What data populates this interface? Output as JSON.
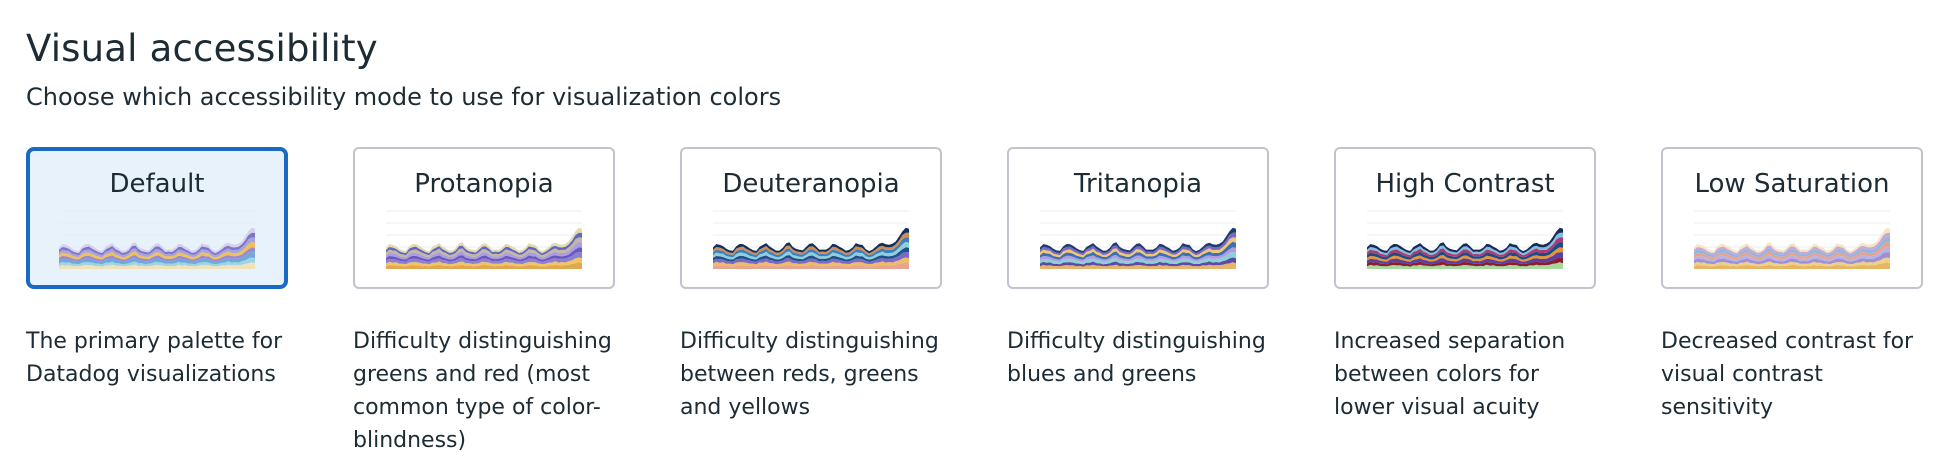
{
  "header": {
    "title": "Visual accessibility",
    "subtitle": "Choose which accessibility mode to use for visualization colors"
  },
  "selected": "default",
  "options": [
    {
      "id": "default",
      "label": "Default",
      "description": "The primary palette for Datadog visualizations",
      "palette": [
        "#f1e3b7",
        "#9fd4e6",
        "#6fa9d9",
        "#9b8ad0",
        "#f0c05a",
        "#a7a3dc",
        "#7e74c9",
        "#d6d0ef"
      ]
    },
    {
      "id": "protanopia",
      "label": "Protanopia",
      "description": "Difficulty distinguishing greens and red (most common type of color-blindness)",
      "palette": [
        "#e2a84f",
        "#f2c464",
        "#8d7fd1",
        "#6a58c0",
        "#a89ee0",
        "#c9b5a0",
        "#5c6bc0",
        "#e7d9ae"
      ]
    },
    {
      "id": "deuteranopia",
      "label": "Deuteranopia",
      "description": "Difficulty distinguishing between reds, greens and yellows",
      "palette": [
        "#e8a690",
        "#f0bc63",
        "#7c6ac9",
        "#1f4f8c",
        "#8ecfd8",
        "#3a7fc0",
        "#d58a4f",
        "#0f2f5c"
      ]
    },
    {
      "id": "tritanopia",
      "label": "Tritanopia",
      "description": "Difficulty distinguishing blues and greens",
      "palette": [
        "#e7b46a",
        "#5c4ba6",
        "#8ad0d4",
        "#b39be0",
        "#3b6fb6",
        "#f1c76f",
        "#7a68c4",
        "#1e3c73"
      ]
    },
    {
      "id": "high-contrast",
      "label": "High Contrast",
      "description": "Increased separation between colors for lower visual acuity",
      "palette": [
        "#a6d99c",
        "#8a1e2f",
        "#5b3fa8",
        "#e7952f",
        "#1c4a8a",
        "#b03a6e",
        "#7fbde6",
        "#132b55"
      ]
    },
    {
      "id": "low-saturation",
      "label": "Low Saturation",
      "description": "Decreased contrast for visual contrast sensitivity",
      "palette": [
        "#e6b664",
        "#f0cf87",
        "#9c90d7",
        "#b9b1e3",
        "#e6a38f",
        "#8fb6df",
        "#c8a6d9",
        "#f3e6c1"
      ]
    }
  ]
}
